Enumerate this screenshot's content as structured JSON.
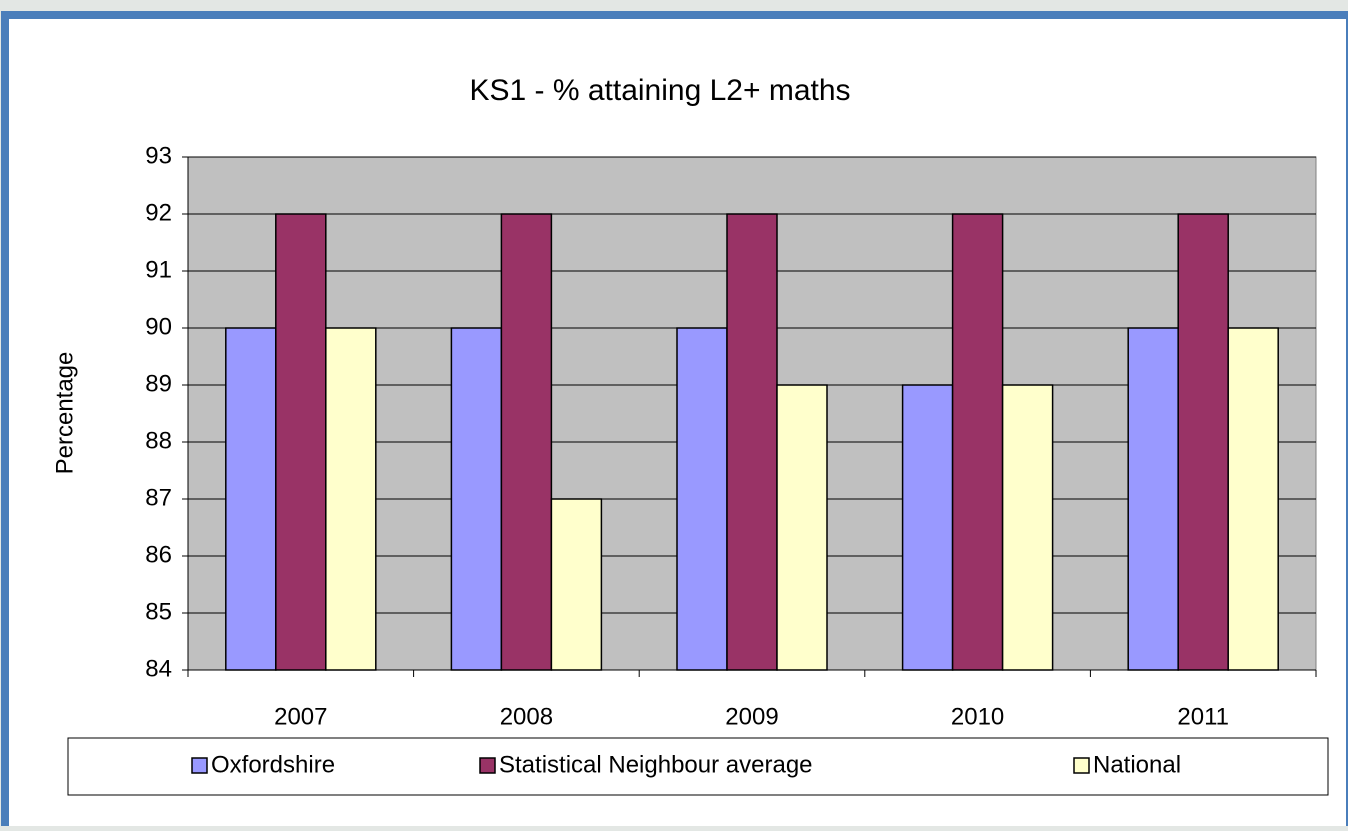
{
  "chart_data": {
    "type": "bar",
    "title": "KS1 - % attaining L2+ maths",
    "y_label": "Percentage",
    "categories": [
      "2007",
      "2008",
      "2009",
      "2010",
      "2011"
    ],
    "series": [
      {
        "name": "Oxfordshire",
        "color": "#9999ff",
        "values": [
          90,
          90,
          90,
          89,
          90
        ]
      },
      {
        "name": "Statistical Neighbour average",
        "color": "#993366",
        "values": [
          92,
          92,
          92,
          92,
          92
        ]
      },
      {
        "name": "National",
        "color": "#ffffcc",
        "values": [
          90,
          87,
          89,
          89,
          90
        ]
      }
    ],
    "ylim": [
      84,
      93
    ],
    "yticks": [
      84,
      85,
      86,
      87,
      88,
      89,
      90,
      91,
      92,
      93
    ],
    "grid": true,
    "legend": "bottom"
  }
}
